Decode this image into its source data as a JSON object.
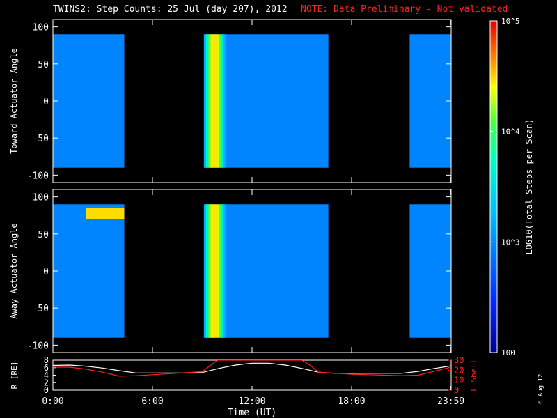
{
  "title": "TWINS2: Step Counts: 25 Jul (day 207), 2012",
  "note": "NOTE: Data Preliminary - Not validated",
  "stamp": "6 Aug 12",
  "colors": {
    "note": "#ff2020",
    "background": "#000000",
    "axes": "#ffffff",
    "r_line": "#ffffff",
    "lshell_line": "#ff2020"
  },
  "chart_data": [
    {
      "type": "heatmap",
      "ylabel": "Toward Actuator Angle",
      "xlim": [
        0,
        24
      ],
      "ylim": [
        -110,
        110
      ],
      "y_ticks": [
        100,
        50,
        0,
        -50,
        -100
      ],
      "value_range": [
        100,
        100000
      ],
      "log_scale": true,
      "data_intervals_hours": [
        [
          0,
          4.3
        ],
        [
          9.1,
          16.6
        ],
        [
          21.5,
          24.0
        ]
      ],
      "angle_range": [
        -90,
        90
      ],
      "baseline_counts": 900,
      "high_count_band_hours": [
        9.1,
        10.4
      ],
      "high_count_band_peak": 30000
    },
    {
      "type": "heatmap",
      "ylabel": "Away Actuator Angle",
      "xlim": [
        0,
        24
      ],
      "ylim": [
        -110,
        110
      ],
      "y_ticks": [
        100,
        50,
        0,
        -50,
        -100
      ],
      "value_range": [
        100,
        100000
      ],
      "log_scale": true,
      "data_intervals_hours": [
        [
          0,
          4.3
        ],
        [
          9.1,
          16.6
        ],
        [
          21.5,
          24.0
        ]
      ],
      "angle_range": [
        -90,
        90
      ],
      "baseline_counts": 900,
      "high_count_band_hours": [
        9.1,
        10.4
      ],
      "high_count_band_peak": 30000,
      "hot_spot_angle_range": [
        70,
        85
      ],
      "hot_spot_hours": [
        2.0,
        4.3
      ]
    },
    {
      "type": "line",
      "ylabel": "R [RE]",
      "y2label": "L Shell",
      "xlabel": "Time (UT)",
      "x_ticks": [
        "0:00",
        "6:00",
        "12:00",
        "18:00",
        "23:59"
      ],
      "x_tick_hours": [
        0,
        6,
        12,
        18,
        23.983
      ],
      "ylim": [
        0,
        8
      ],
      "y_ticks": [
        0,
        2,
        4,
        6,
        8
      ],
      "y2lim": [
        0,
        30
      ],
      "y2_ticks": [
        0,
        10,
        20,
        30
      ],
      "series": [
        {
          "name": "R [RE]",
          "axis": "left",
          "x": [
            0,
            1,
            2,
            3,
            4,
            5,
            6,
            7,
            8,
            9,
            10,
            11,
            12,
            13,
            14,
            15,
            16,
            17,
            18,
            19,
            20,
            21,
            22,
            23,
            24
          ],
          "values": [
            6.6,
            6.7,
            6.4,
            5.9,
            5.2,
            4.6,
            4.6,
            4.6,
            4.6,
            4.7,
            5.8,
            6.7,
            7.2,
            7.2,
            6.7,
            5.8,
            4.8,
            4.5,
            4.5,
            4.5,
            4.5,
            4.5,
            5.0,
            5.8,
            6.5
          ]
        },
        {
          "name": "L Shell",
          "axis": "right",
          "x": [
            0,
            1,
            2,
            3,
            4,
            5,
            6,
            7,
            8,
            9,
            9.6,
            9.9,
            15.0,
            15.5,
            16,
            17,
            18,
            19,
            20,
            21,
            22,
            23,
            24
          ],
          "values": [
            23,
            23,
            21,
            18,
            14,
            14.5,
            15.5,
            16.5,
            17.5,
            18.5,
            26,
            30,
            30,
            25,
            18,
            17,
            16,
            15.5,
            15,
            14.5,
            15,
            19,
            23
          ]
        }
      ]
    }
  ],
  "colorbar": {
    "title": "LOG10(Total Steps per Scan)",
    "ticks": [
      {
        "value": 100000,
        "label": "10^5"
      },
      {
        "value": 10000,
        "label": "10^4"
      },
      {
        "value": 1000,
        "label": "10^3"
      },
      {
        "value": 100,
        "label": "100"
      }
    ],
    "range": [
      100,
      100000
    ],
    "log_scale": true
  }
}
